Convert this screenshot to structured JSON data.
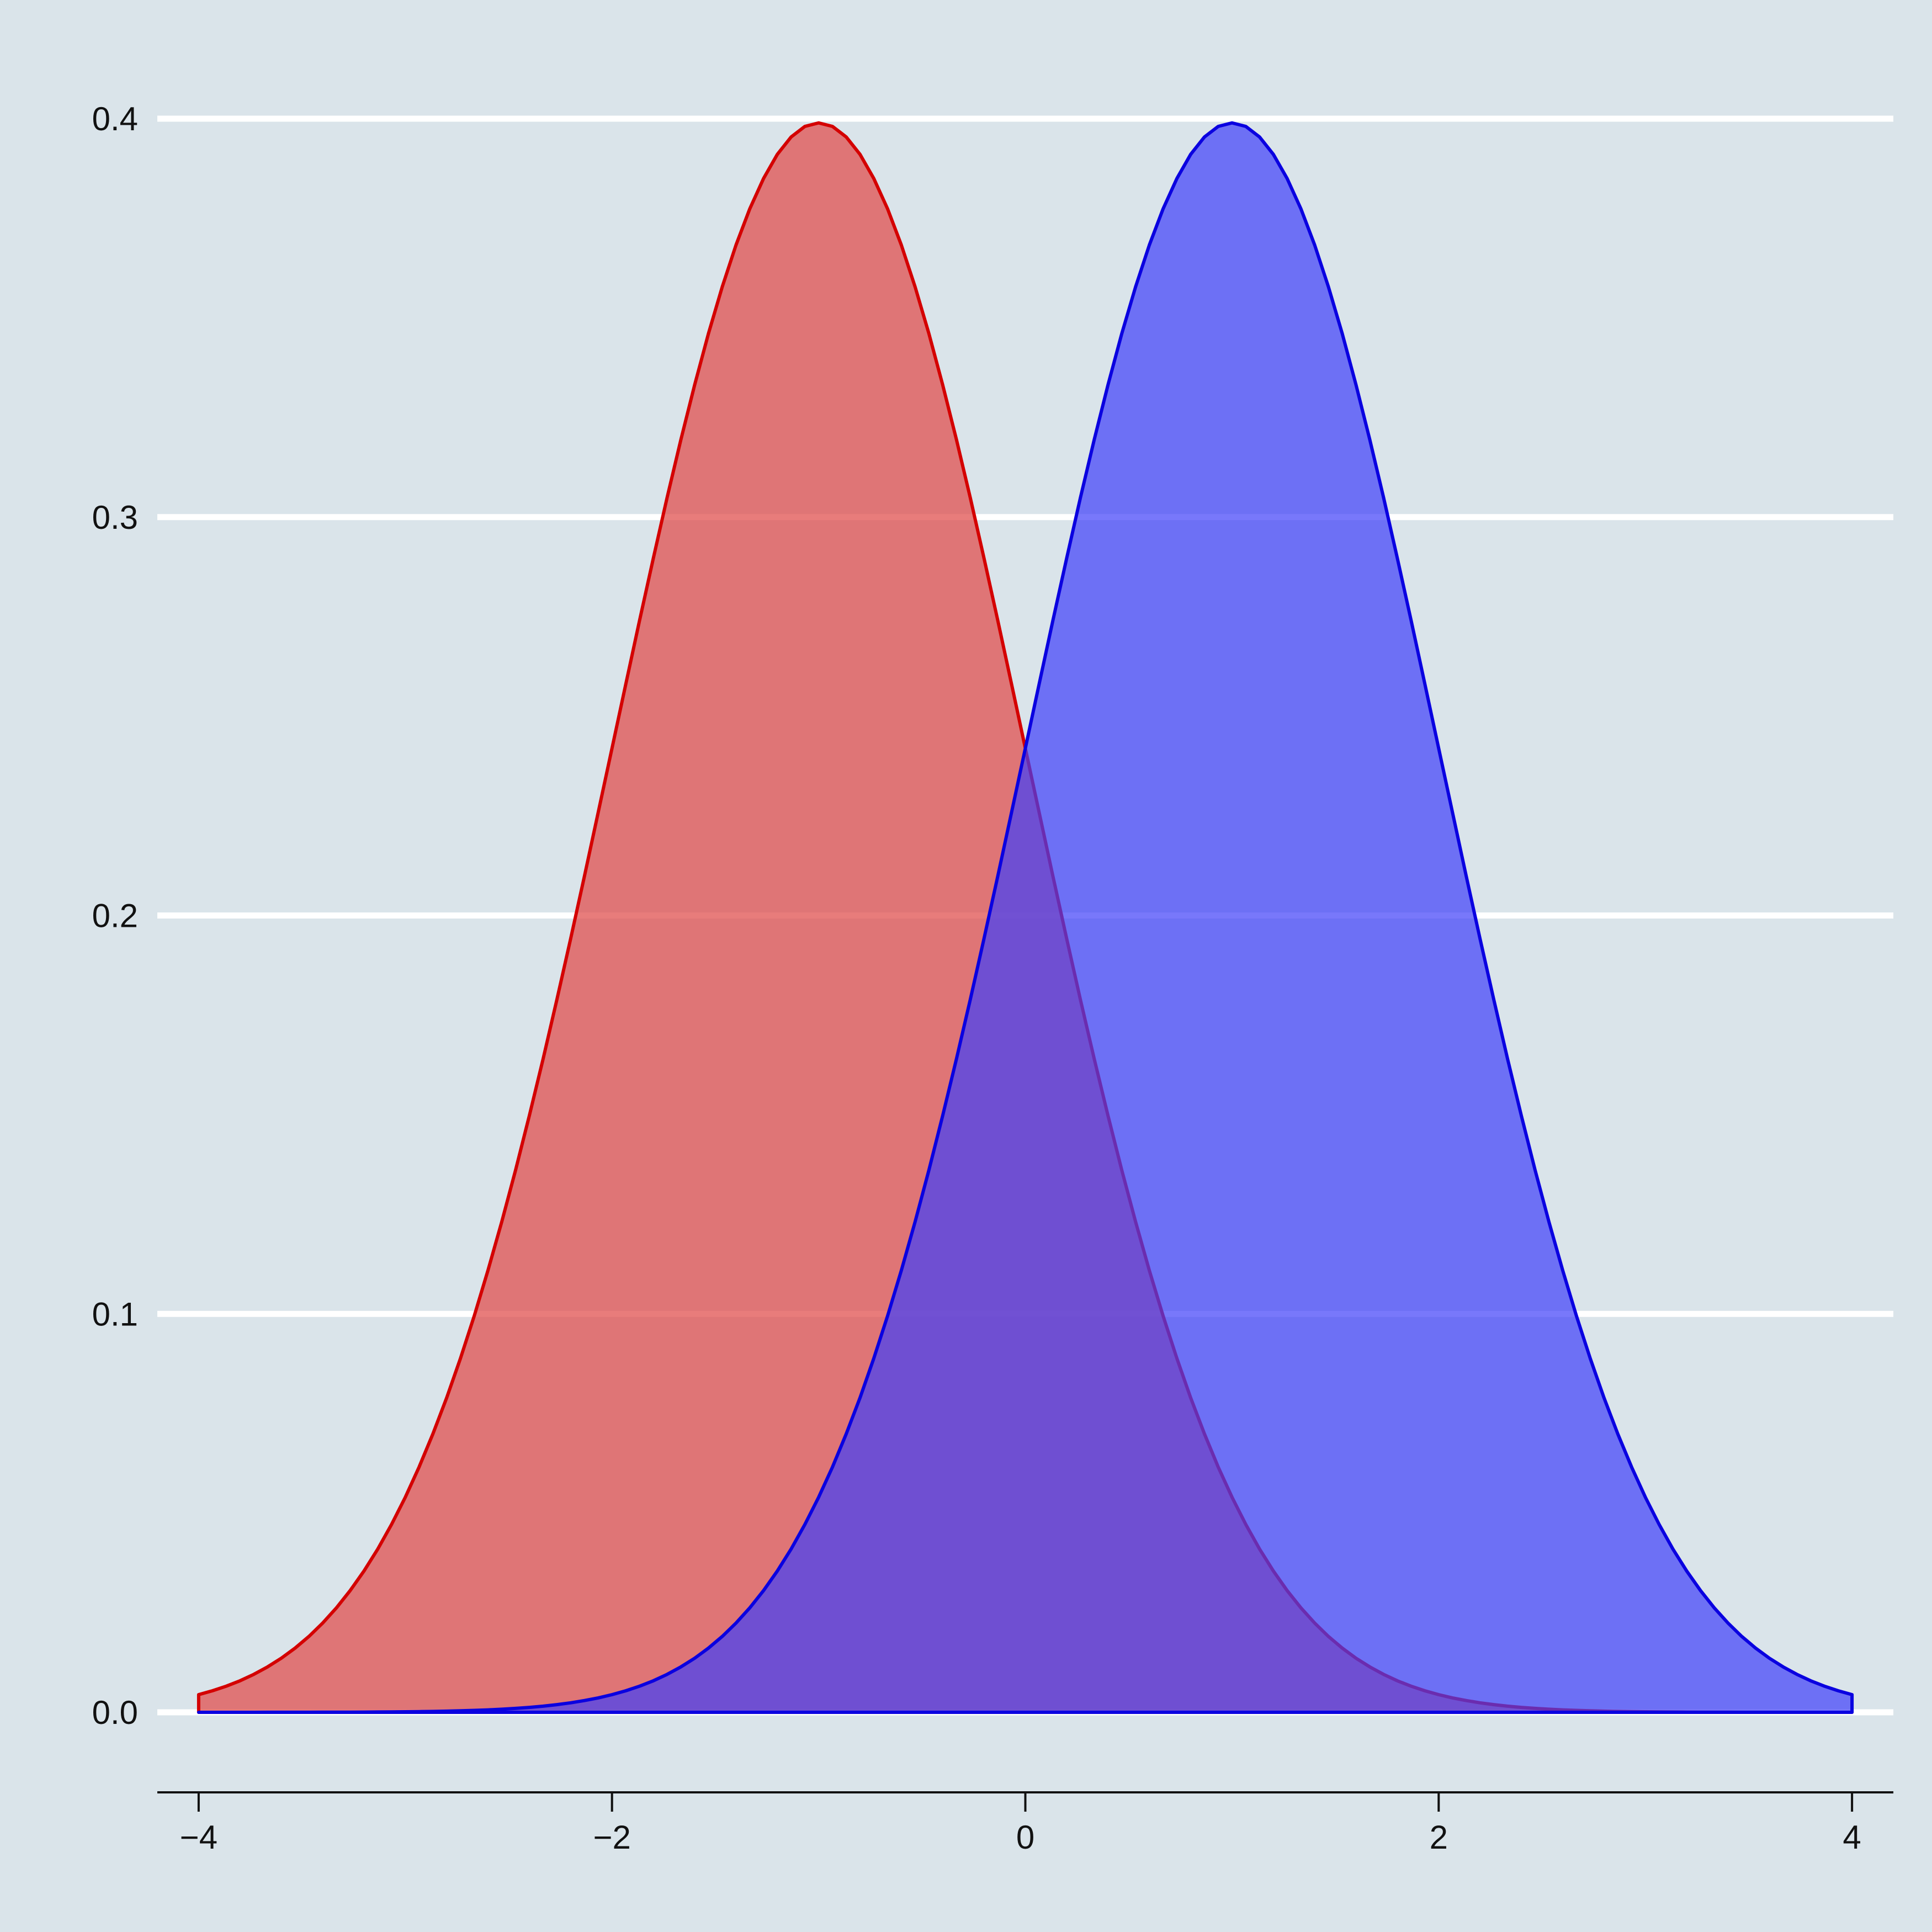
{
  "chart_data": {
    "type": "area",
    "title": "",
    "xlabel": "",
    "ylabel": "",
    "xlim": [
      -4.2,
      4.2
    ],
    "ylim": [
      -0.02,
      0.4
    ],
    "xticks": [
      -4,
      -2,
      0,
      2,
      4
    ],
    "xtick_labels": [
      "−4",
      "−2",
      "0",
      "2",
      "4"
    ],
    "yticks": [
      0.0,
      0.1,
      0.2,
      0.3,
      0.4
    ],
    "ytick_labels": [
      "0.0",
      "0.1",
      "0.2",
      "0.3",
      "0.4"
    ],
    "grid": "horizontal",
    "legend": "none",
    "series": [
      {
        "distribution": "normal",
        "mean": -1,
        "sd": 1,
        "x_range": [
          -4,
          4
        ],
        "peak": 0.399,
        "line_color": "#d40000",
        "fill_color": "#e0504f",
        "fill_opacity": 0.75
      },
      {
        "distribution": "normal",
        "mean": 1,
        "sd": 1,
        "x_range": [
          -4,
          4
        ],
        "peak": 0.399,
        "line_color": "#0a00e0",
        "fill_color": "#3f3ffa",
        "fill_opacity": 0.7
      }
    ],
    "colors": {
      "background": "#dae4ea",
      "gridline": "#ffffff",
      "axis": "#111111"
    }
  }
}
